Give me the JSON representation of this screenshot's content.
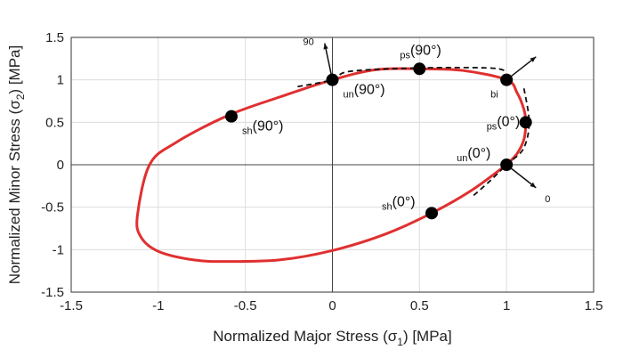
{
  "chart_data": {
    "type": "line",
    "xlabel": {
      "text": "Normalized Major Stress (σ",
      "sub": "1",
      "after": ") [MPa]"
    },
    "ylabel": {
      "text": "Normalized Minor Stress (σ",
      "sub": "2",
      "after": ") [MPa]"
    },
    "xlim": [
      -1.5,
      1.5
    ],
    "ylim": [
      -1.5,
      1.5
    ],
    "xticks": [
      -1.5,
      -1,
      -0.5,
      0,
      0.5,
      1,
      1.5
    ],
    "yticks": [
      -1.5,
      -1,
      -0.5,
      0,
      0.5,
      1,
      1.5
    ],
    "xtick_labels": [
      "-1.5",
      "-1",
      "-0.5",
      "0",
      "0.5",
      "1",
      "1.5"
    ],
    "ytick_labels": [
      "-1.5",
      "-1",
      "-0.5",
      "0",
      "0.5",
      "1",
      "1.5"
    ],
    "grid": true,
    "series": [
      {
        "style": "solid",
        "color": "#e03030",
        "x": [
          1.0,
          1.06,
          1.1,
          1.11,
          1.1,
          1.06,
          1.0,
          0.75,
          0.5,
          0.25,
          0.0,
          -0.3,
          -0.6,
          -0.9,
          -1.05,
          -1.12,
          -1.1,
          -1.0,
          -0.8,
          -0.6,
          -0.3,
          0.0,
          0.3,
          0.57,
          0.8,
          1.0
        ],
        "y": [
          1.0,
          0.85,
          0.65,
          0.5,
          0.3,
          0.13,
          0.0,
          1.11,
          1.13,
          1.12,
          1.0,
          0.8,
          0.58,
          0.26,
          0.0,
          -0.6,
          -0.85,
          -1.02,
          -1.12,
          -1.14,
          -1.12,
          -1.01,
          -0.82,
          -0.57,
          -0.3,
          0.0
        ]
      },
      {
        "style": "dashed",
        "color": "#111111",
        "x": [
          -0.2,
          0.0,
          0.1,
          0.5,
          0.9,
          1.0
        ],
        "y": [
          0.92,
          1.0,
          1.1,
          1.14,
          1.14,
          1.1
        ]
      },
      {
        "style": "dashed",
        "color": "#111111",
        "x": [
          1.1,
          1.13,
          1.1,
          1.03,
          1.0,
          0.9,
          0.8
        ],
        "y": [
          0.9,
          0.5,
          0.2,
          0.05,
          0.0,
          -0.2,
          -0.38
        ]
      }
    ],
    "points": [
      {
        "x": 1.0,
        "y": 1.0,
        "big": "",
        "small": "bi",
        "label_pos": "below-left"
      },
      {
        "x": 0.0,
        "y": 1.0,
        "big": "(90°)",
        "small": "un",
        "label_pos": "below-right"
      },
      {
        "x": 0.5,
        "y": 1.13,
        "big": "(90°)",
        "small": "ps",
        "label_pos": "above"
      },
      {
        "x": -0.58,
        "y": 0.57,
        "big": "(90°)",
        "small": "sh",
        "label_pos": "below-right"
      },
      {
        "x": 1.11,
        "y": 0.5,
        "big": "(0°)",
        "small": "ps",
        "label_pos": "left"
      },
      {
        "x": 1.0,
        "y": 0.0,
        "big": "(0°)",
        "small": "un",
        "label_pos": "above-left"
      },
      {
        "x": 0.57,
        "y": -0.57,
        "big": "(0°)",
        "small": "sh",
        "label_pos": "above-left"
      }
    ],
    "arrows": [
      {
        "from": [
          0.0,
          1.0
        ],
        "angle_deg": 102,
        "label": "90"
      },
      {
        "from": [
          1.0,
          1.0
        ],
        "angle_deg": 38,
        "label": ""
      },
      {
        "from": [
          1.0,
          0.0
        ],
        "angle_deg": -38,
        "label": "0"
      }
    ]
  }
}
